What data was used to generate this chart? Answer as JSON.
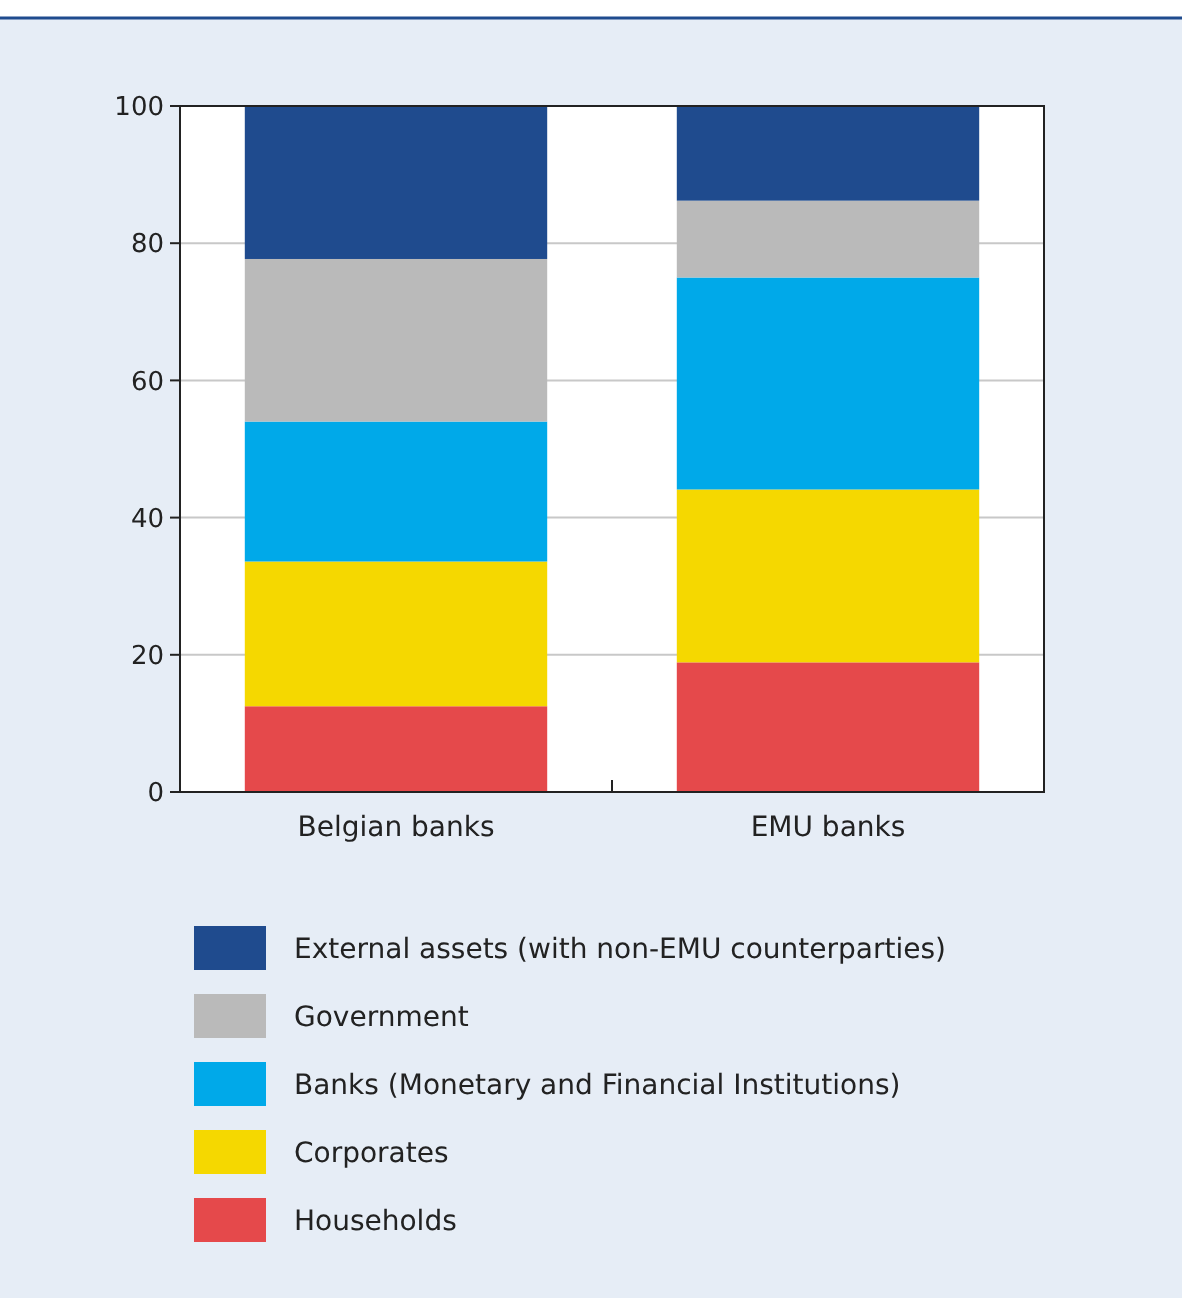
{
  "chart_data": {
    "type": "bar",
    "stacked": true,
    "categories": [
      "Belgian banks",
      "EMU banks"
    ],
    "series": [
      {
        "name": "Households",
        "color": "#e5494b",
        "values": [
          12.5,
          18.9
        ]
      },
      {
        "name": "Corporates",
        "color": "#f5d800",
        "values": [
          21.1,
          25.2
        ]
      },
      {
        "name": "Banks (Monetary and Financial Institutions)",
        "color": "#00a9e9",
        "values": [
          20.4,
          30.9
        ]
      },
      {
        "name": "Government",
        "color": "#bababa",
        "values": [
          23.7,
          11.2
        ]
      },
      {
        "name": "External assets (with non-EMU counterparties)",
        "color": "#1f4b8e",
        "values": [
          22.3,
          13.8
        ]
      }
    ],
    "ylim": [
      0,
      100
    ],
    "yticks": [
      0,
      20,
      40,
      60,
      80,
      100
    ],
    "grid": "y",
    "legend": "bottom"
  }
}
